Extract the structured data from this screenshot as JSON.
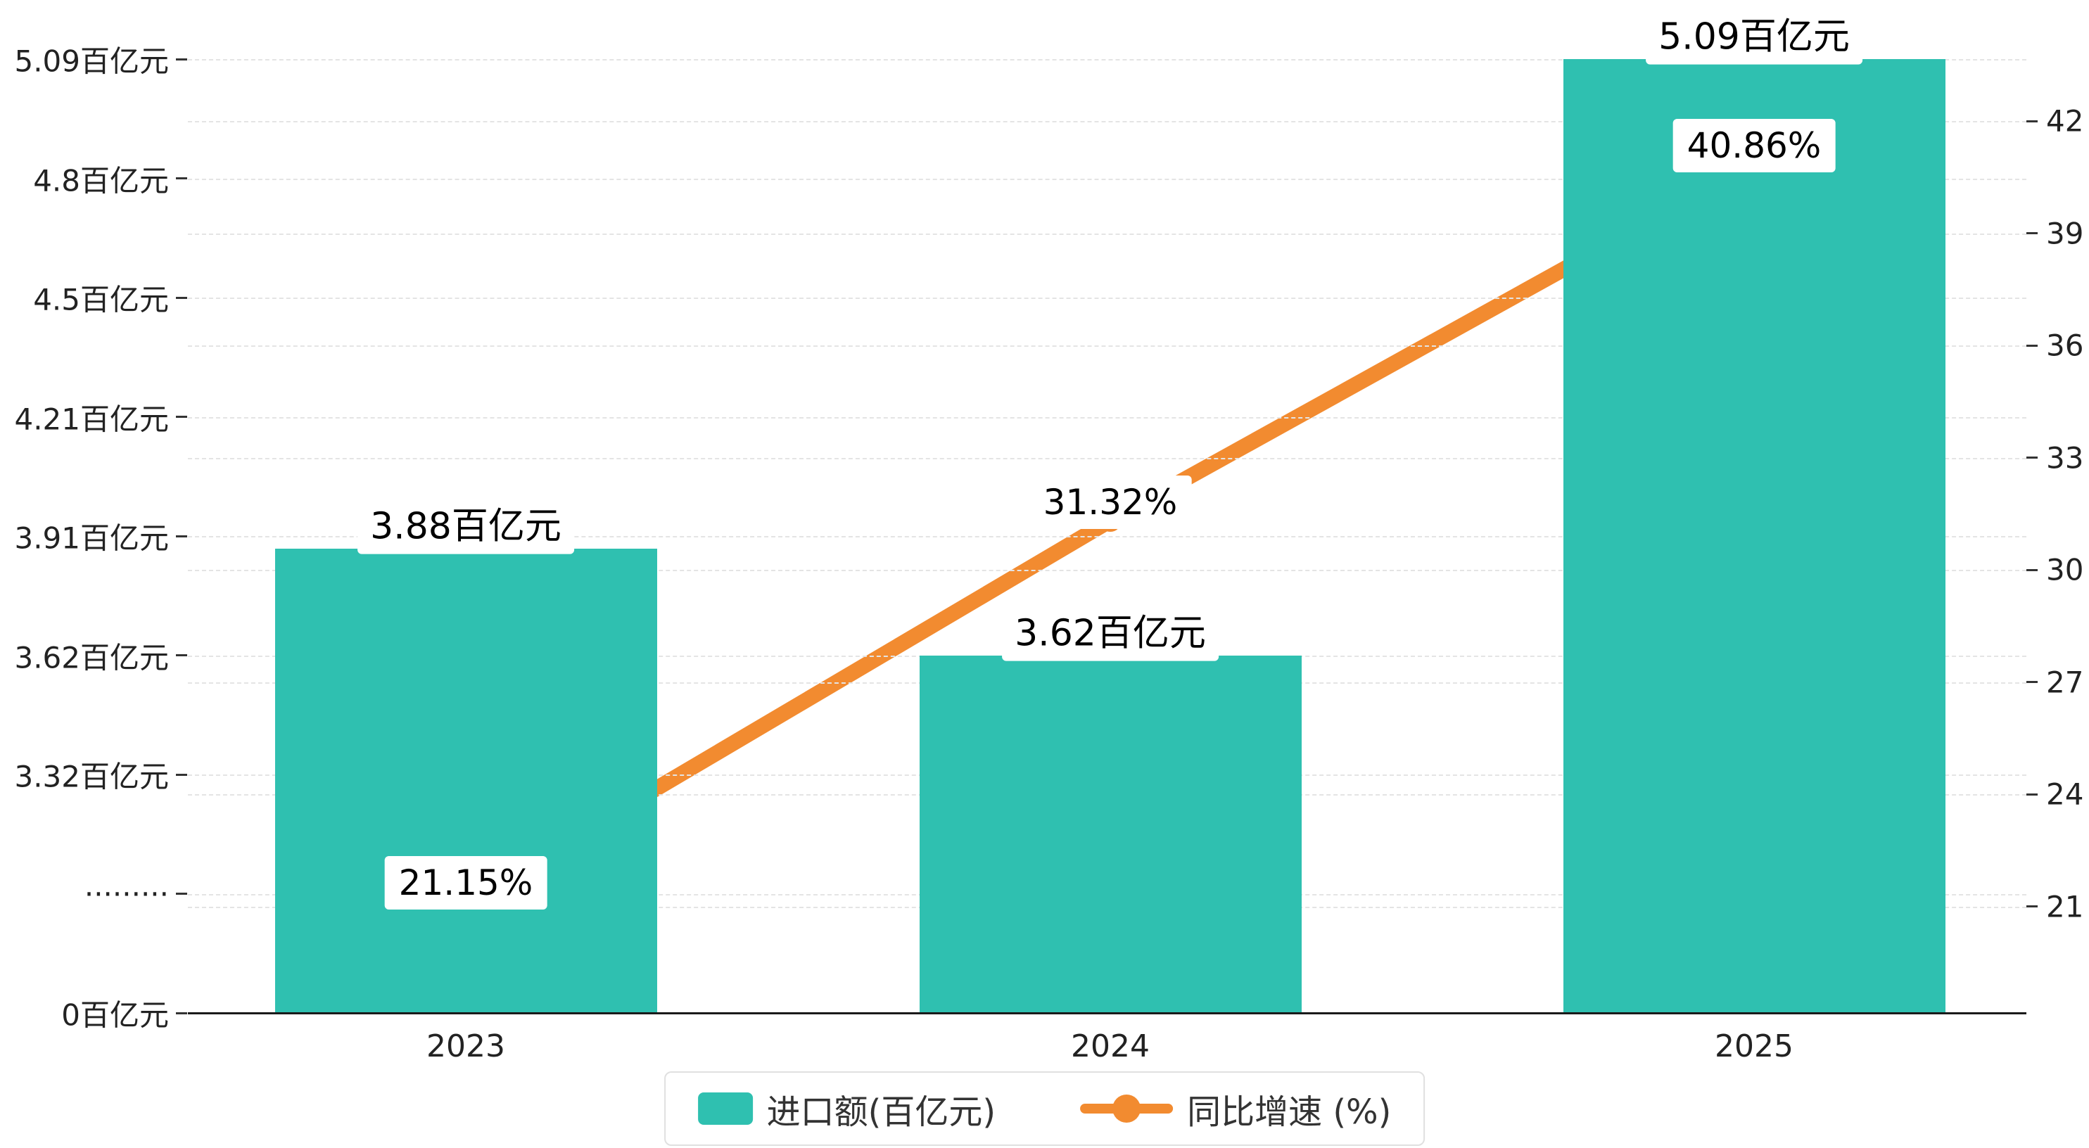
{
  "chart_data": {
    "type": "bar+line",
    "categories": [
      "2023",
      "2024",
      "2025"
    ],
    "series": [
      {
        "name": "进口额(百亿元)",
        "type": "bar",
        "values": [
          3.88,
          3.62,
          5.09
        ],
        "labels": [
          "3.88百亿元",
          "3.62百亿元",
          "5.09百亿元"
        ],
        "color": "#2fc0b0"
      },
      {
        "name": "同比增速 (%)",
        "type": "line",
        "values": [
          21.15,
          31.32,
          40.86
        ],
        "labels": [
          "21.15%",
          "31.32%",
          "40.86%"
        ],
        "color": "#f28b30"
      }
    ],
    "left_axis": {
      "tick_labels": [
        "5.09百亿元",
        "4.8百亿元",
        "4.5百亿元",
        "4.21百亿元",
        "3.91百亿元",
        "3.62百亿元",
        "3.32百亿元",
        "·········",
        "0百亿元"
      ],
      "tick_values": [
        5.09,
        4.8,
        4.5,
        4.21,
        3.91,
        3.62,
        3.32,
        null,
        0
      ],
      "has_break": true
    },
    "right_axis": {
      "tick_labels": [
        "42",
        "39",
        "36",
        "33",
        "30",
        "27",
        "24",
        "21"
      ],
      "min": 21,
      "max": 42,
      "step": 3
    },
    "legend": [
      {
        "label": "进口额(百亿元)",
        "marker": "bar-swatch"
      },
      {
        "label": "同比增速 (%)",
        "marker": "line-dot"
      }
    ],
    "grid": "dashed-horizontal",
    "legend_position": "bottom-center"
  }
}
